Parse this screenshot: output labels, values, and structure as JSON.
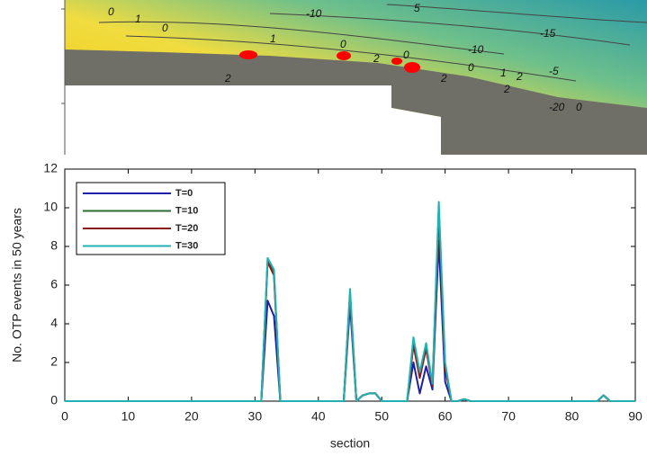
{
  "map": {
    "contour_labels": [
      "0",
      "1",
      "0",
      "-10",
      "5",
      "-15",
      "1",
      "0",
      "2",
      "0",
      "2",
      "-10",
      "0",
      "1",
      "2",
      "-5",
      "2",
      "-20",
      "0",
      "2"
    ]
  },
  "chart_data": {
    "type": "line",
    "x": [
      0,
      29,
      30,
      31,
      32,
      33,
      34,
      35,
      43,
      44,
      45,
      46,
      47,
      48,
      49,
      50,
      53,
      54,
      55,
      56,
      57,
      58,
      59,
      60,
      61,
      62,
      63,
      64,
      84,
      85,
      86,
      90
    ],
    "series": [
      {
        "name": "T=0",
        "color": "#1f1fa8",
        "values": [
          0,
          0,
          0,
          0,
          5.2,
          4.4,
          0,
          0,
          0,
          0,
          5.0,
          0,
          0.3,
          0.4,
          0.4,
          0,
          0,
          0,
          2.0,
          0.4,
          1.8,
          0.6,
          8.3,
          1.0,
          0,
          0,
          0.1,
          0,
          0,
          0.3,
          0,
          0
        ]
      },
      {
        "name": "T=10",
        "color": "#2e6b30",
        "values": [
          0,
          0,
          0,
          0,
          7.3,
          6.6,
          0,
          0,
          0,
          0,
          5.6,
          0,
          0.3,
          0.4,
          0.4,
          0,
          0,
          0,
          3.0,
          1.3,
          2.8,
          0.8,
          9.9,
          1.8,
          0,
          0,
          0.1,
          0,
          0,
          0.3,
          0,
          0
        ]
      },
      {
        "name": "T=20",
        "color": "#8b1a1a",
        "values": [
          0,
          0,
          0,
          0,
          7.2,
          6.5,
          0,
          0,
          0,
          0,
          5.5,
          0,
          0.3,
          0.4,
          0.4,
          0,
          0,
          0,
          2.9,
          1.2,
          2.7,
          0.8,
          9.7,
          1.7,
          0,
          0,
          0.1,
          0,
          0,
          0.3,
          0,
          0
        ]
      },
      {
        "name": "T=30",
        "color": "#22b0b0",
        "values": [
          0,
          0,
          0,
          0,
          7.4,
          6.8,
          0,
          0,
          0,
          0,
          5.8,
          0,
          0.3,
          0.4,
          0.4,
          0,
          0,
          0,
          3.3,
          1.5,
          3.0,
          0.9,
          10.3,
          2.0,
          0,
          0,
          0.1,
          0,
          0,
          0.3,
          0,
          0
        ]
      }
    ],
    "xlabel": "section",
    "ylabel": "No. OTP events in 50 years",
    "xlim": [
      0,
      90
    ],
    "xticks": [
      0,
      10,
      20,
      30,
      40,
      50,
      60,
      70,
      80,
      90
    ],
    "ylim": [
      0,
      12
    ],
    "yticks": [
      0,
      2,
      4,
      6,
      8,
      10,
      12
    ],
    "legend": "upper left"
  }
}
